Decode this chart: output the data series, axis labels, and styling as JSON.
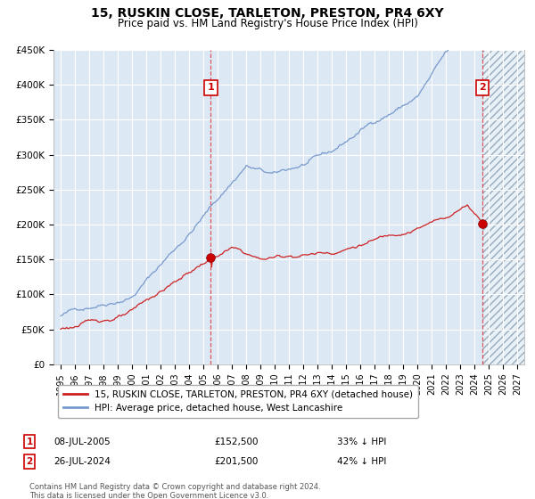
{
  "title": "15, RUSKIN CLOSE, TARLETON, PRESTON, PR4 6XY",
  "subtitle": "Price paid vs. HM Land Registry's House Price Index (HPI)",
  "ylim": [
    0,
    450000
  ],
  "yticks": [
    0,
    50000,
    100000,
    150000,
    200000,
    250000,
    300000,
    350000,
    400000,
    450000
  ],
  "ytick_labels": [
    "£0",
    "£50K",
    "£100K",
    "£150K",
    "£200K",
    "£250K",
    "£300K",
    "£350K",
    "£400K",
    "£450K"
  ],
  "xlim_start": 1994.5,
  "xlim_end": 2027.5,
  "xtick_years": [
    1995,
    1996,
    1997,
    1998,
    1999,
    2000,
    2001,
    2002,
    2003,
    2004,
    2005,
    2006,
    2007,
    2008,
    2009,
    2010,
    2011,
    2012,
    2013,
    2014,
    2015,
    2016,
    2017,
    2018,
    2019,
    2020,
    2021,
    2022,
    2023,
    2024,
    2025,
    2026,
    2027
  ],
  "sale1_x": 2005.52,
  "sale1_y": 152500,
  "sale1_label": "1",
  "sale2_x": 2024.57,
  "sale2_y": 201500,
  "sale2_label": "2",
  "hpi_line_color": "#7799cc",
  "price_line_color": "#cc2222",
  "marker_color": "#cc0000",
  "vline_color": "#dd3333",
  "bg_color": "#dde8f5",
  "future_bg_color": "#c8d8ec",
  "grid_color": "#ffffff",
  "legend_line1": "15, RUSKIN CLOSE, TARLETON, PRESTON, PR4 6XY (detached house)",
  "legend_line2": "HPI: Average price, detached house, West Lancashire",
  "note1_label": "1",
  "note1_date": "08-JUL-2005",
  "note1_price": "£152,500",
  "note1_pct": "33% ↓ HPI",
  "note2_label": "2",
  "note2_date": "26-JUL-2024",
  "note2_price": "£201,500",
  "note2_pct": "42% ↓ HPI",
  "footer": "Contains HM Land Registry data © Crown copyright and database right 2024.\nThis data is licensed under the Open Government Licence v3.0."
}
